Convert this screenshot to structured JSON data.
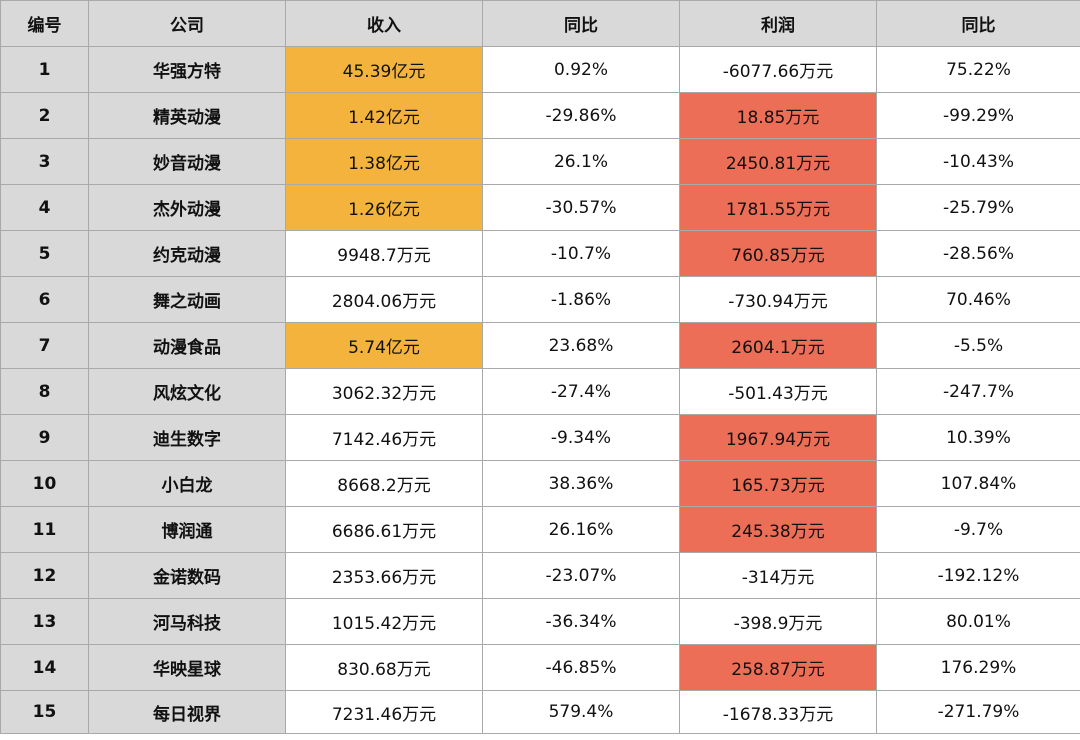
{
  "headers": {
    "num": "编号",
    "company": "公司",
    "revenue": "收入",
    "revenue_yoy": "同比",
    "profit": "利润",
    "profit_yoy": "同比"
  },
  "highlight_colors": {
    "revenue": "#f3b33d",
    "profit": "#ed6e57"
  },
  "rows": [
    {
      "num": "1",
      "company": "华强方特",
      "revenue": "45.39亿元",
      "revenue_yoy": "0.92%",
      "profit": "-6077.66万元",
      "profit_yoy": "75.22%",
      "revenue_highlight": true,
      "profit_highlight": false
    },
    {
      "num": "2",
      "company": "精英动漫",
      "revenue": "1.42亿元",
      "revenue_yoy": "-29.86%",
      "profit": "18.85万元",
      "profit_yoy": "-99.29%",
      "revenue_highlight": true,
      "profit_highlight": true
    },
    {
      "num": "3",
      "company": "妙音动漫",
      "revenue": "1.38亿元",
      "revenue_yoy": "26.1%",
      "profit": "2450.81万元",
      "profit_yoy": "-10.43%",
      "revenue_highlight": true,
      "profit_highlight": true
    },
    {
      "num": "4",
      "company": "杰外动漫",
      "revenue": "1.26亿元",
      "revenue_yoy": "-30.57%",
      "profit": "1781.55万元",
      "profit_yoy": "-25.79%",
      "revenue_highlight": true,
      "profit_highlight": true
    },
    {
      "num": "5",
      "company": "约克动漫",
      "revenue": "9948.7万元",
      "revenue_yoy": "-10.7%",
      "profit": "760.85万元",
      "profit_yoy": "-28.56%",
      "revenue_highlight": false,
      "profit_highlight": true
    },
    {
      "num": "6",
      "company": "舞之动画",
      "revenue": "2804.06万元",
      "revenue_yoy": "-1.86%",
      "profit": "-730.94万元",
      "profit_yoy": "70.46%",
      "revenue_highlight": false,
      "profit_highlight": false
    },
    {
      "num": "7",
      "company": "动漫食品",
      "revenue": "5.74亿元",
      "revenue_yoy": "23.68%",
      "profit": "2604.1万元",
      "profit_yoy": "-5.5%",
      "revenue_highlight": true,
      "profit_highlight": true
    },
    {
      "num": "8",
      "company": "风炫文化",
      "revenue": "3062.32万元",
      "revenue_yoy": "-27.4%",
      "profit": "-501.43万元",
      "profit_yoy": "-247.7%",
      "revenue_highlight": false,
      "profit_highlight": false
    },
    {
      "num": "9",
      "company": "迪生数字",
      "revenue": "7142.46万元",
      "revenue_yoy": "-9.34%",
      "profit": "1967.94万元",
      "profit_yoy": "10.39%",
      "revenue_highlight": false,
      "profit_highlight": true
    },
    {
      "num": "10",
      "company": "小白龙",
      "revenue": "8668.2万元",
      "revenue_yoy": "38.36%",
      "profit": "165.73万元",
      "profit_yoy": "107.84%",
      "revenue_highlight": false,
      "profit_highlight": true
    },
    {
      "num": "11",
      "company": "博润通",
      "revenue": "6686.61万元",
      "revenue_yoy": "26.16%",
      "profit": "245.38万元",
      "profit_yoy": "-9.7%",
      "revenue_highlight": false,
      "profit_highlight": true
    },
    {
      "num": "12",
      "company": "金诺数码",
      "revenue": "2353.66万元",
      "revenue_yoy": "-23.07%",
      "profit": "-314万元",
      "profit_yoy": "-192.12%",
      "revenue_highlight": false,
      "profit_highlight": false
    },
    {
      "num": "13",
      "company": "河马科技",
      "revenue": "1015.42万元",
      "revenue_yoy": "-36.34%",
      "profit": "-398.9万元",
      "profit_yoy": "80.01%",
      "revenue_highlight": false,
      "profit_highlight": false
    },
    {
      "num": "14",
      "company": "华映星球",
      "revenue": "830.68万元",
      "revenue_yoy": "-46.85%",
      "profit": "258.87万元",
      "profit_yoy": "176.29%",
      "revenue_highlight": false,
      "profit_highlight": true
    },
    {
      "num": "15",
      "company": "每日视界",
      "revenue": "7231.46万元",
      "revenue_yoy": "579.4%",
      "profit": "-1678.33万元",
      "profit_yoy": "-271.79%",
      "revenue_highlight": false,
      "profit_highlight": false
    }
  ]
}
